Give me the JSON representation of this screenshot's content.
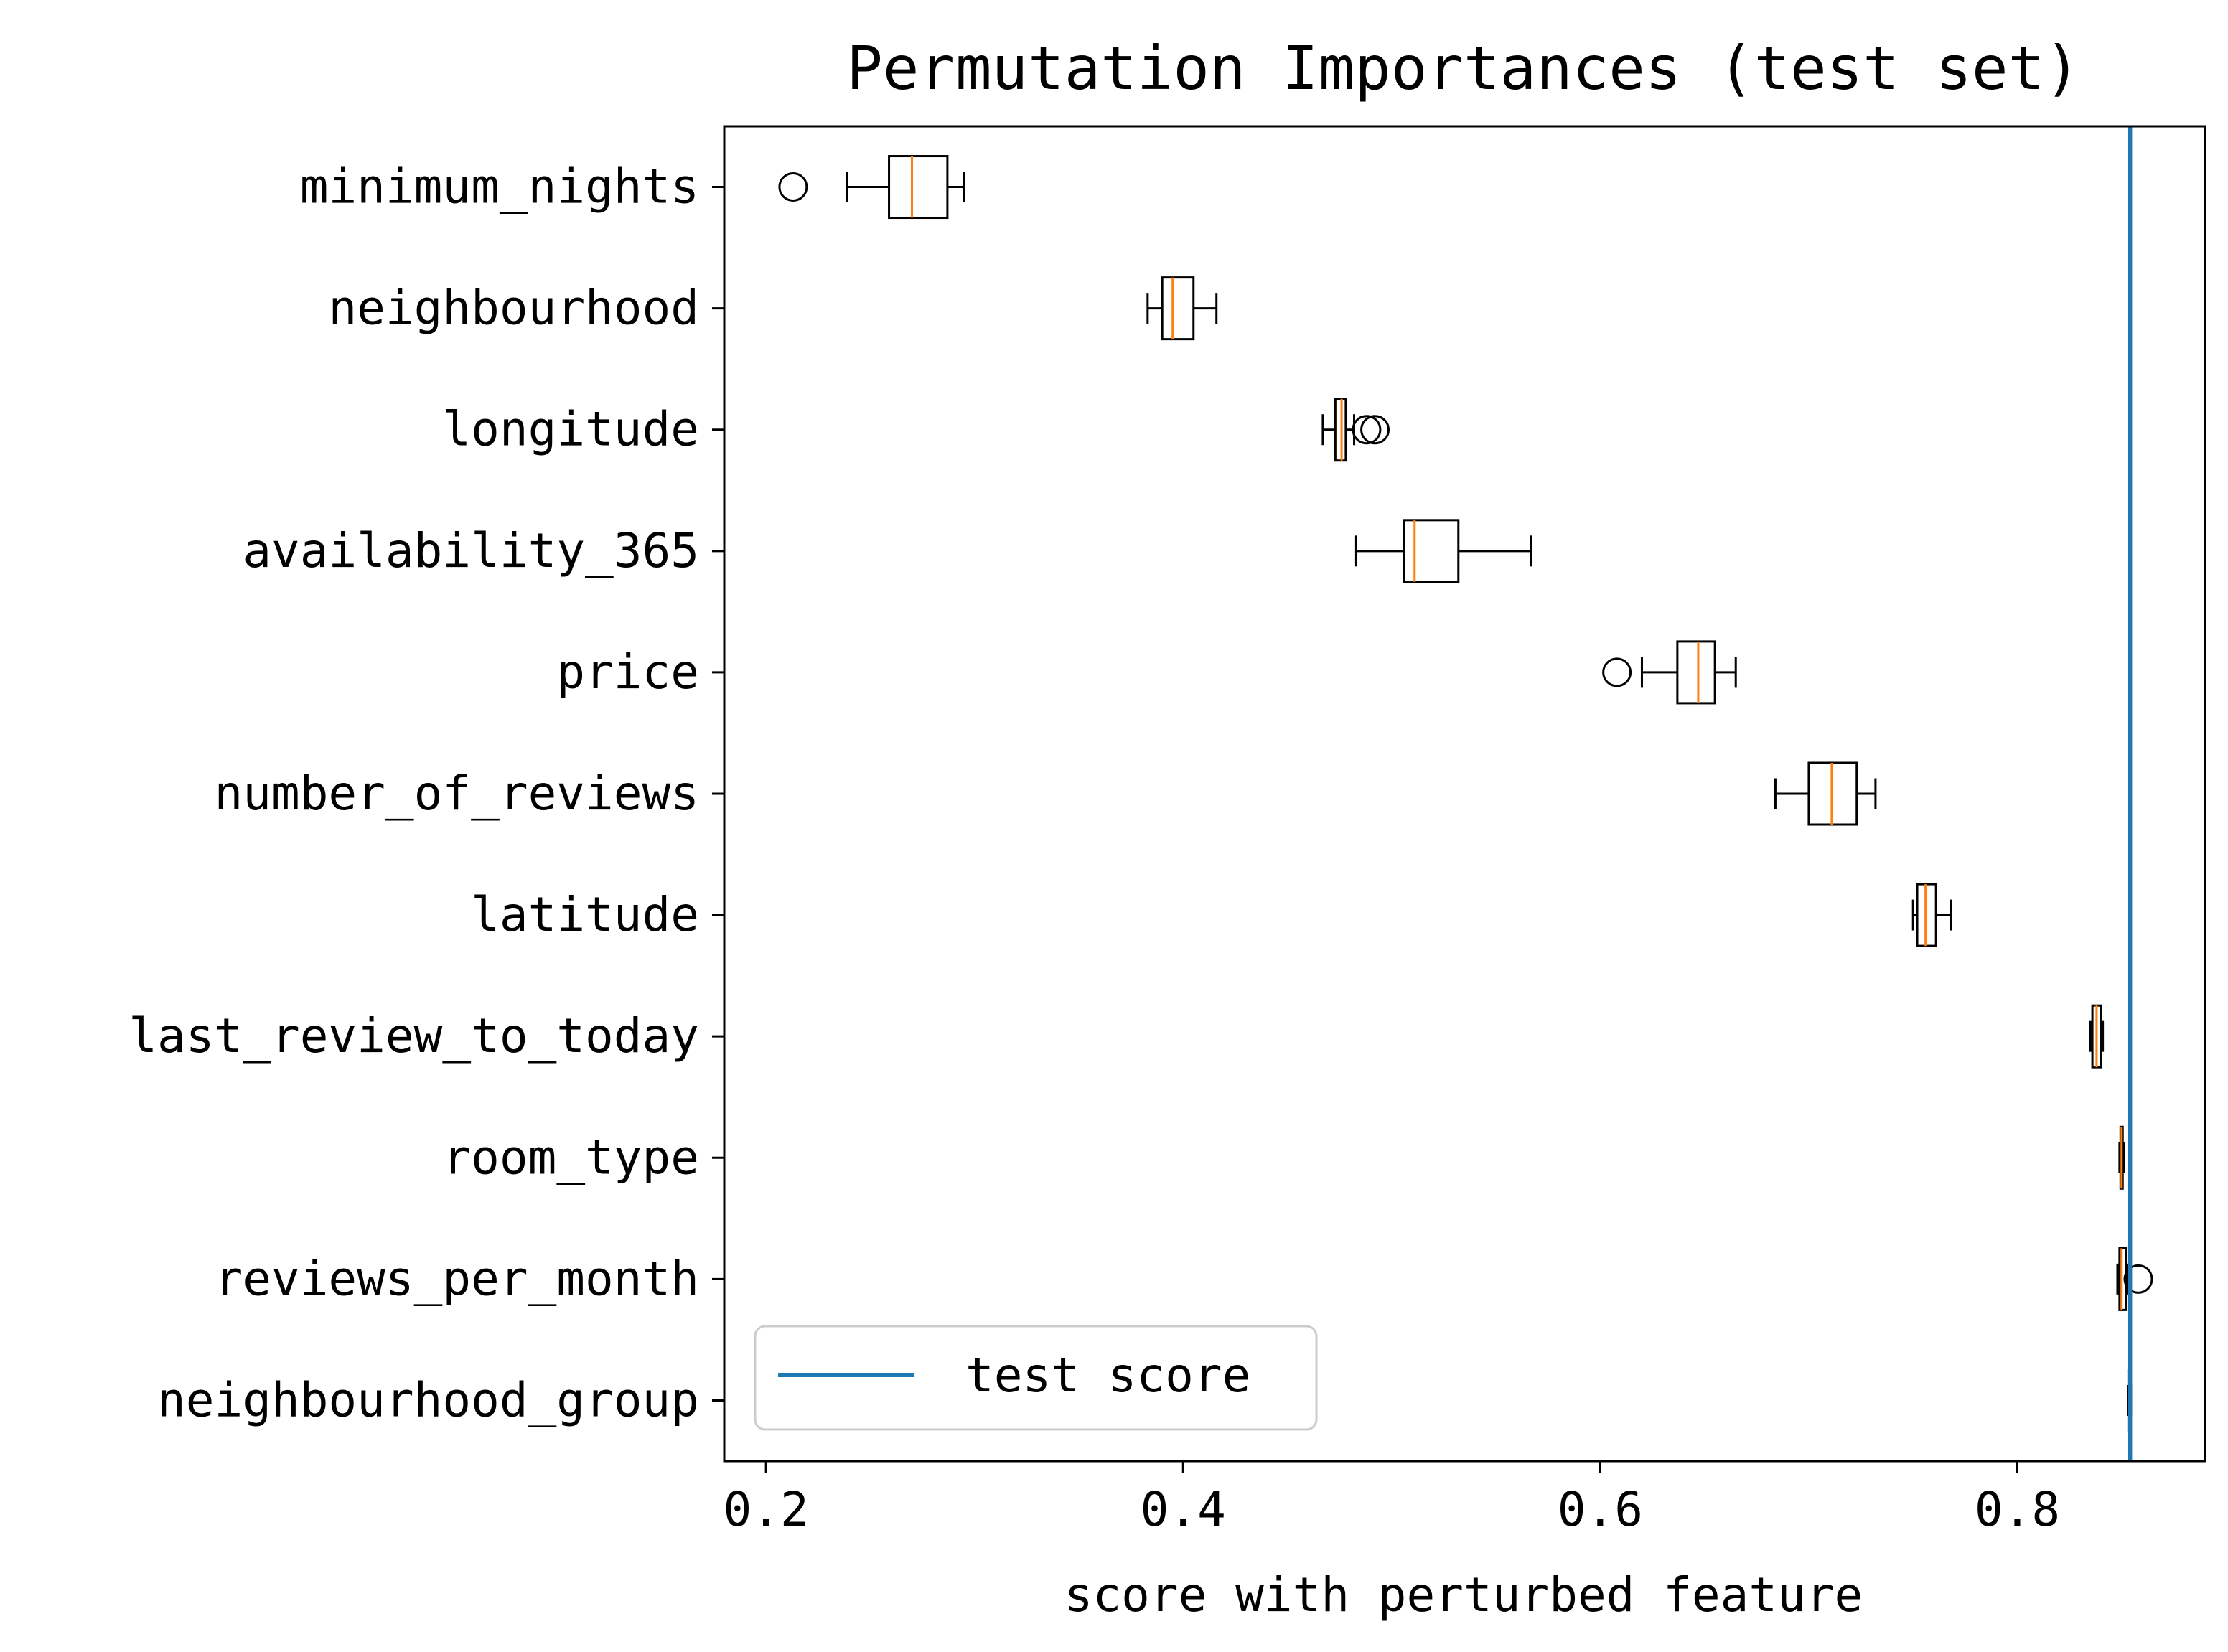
{
  "chart_data": {
    "type": "boxplot",
    "orientation": "horizontal",
    "title": "Permutation Importances (test set)",
    "xlabel": "score with perturbed feature",
    "ylabel": "",
    "xlim": [
      0.18,
      0.89
    ],
    "xticks": [
      0.2,
      0.4,
      0.6,
      0.8
    ],
    "xtick_labels": [
      "0.2",
      "0.4",
      "0.6",
      "0.8"
    ],
    "grid": false,
    "colors": {
      "box": "#000000",
      "median": "#ff7f0e",
      "test_score": "#1f77b4"
    },
    "test_score": {
      "label": "test score",
      "value": 0.854
    },
    "legend": {
      "position": "lower-left",
      "entries": [
        "test score"
      ]
    },
    "features": [
      {
        "name": "minimum_nights",
        "whisker_low": 0.239,
        "q1": 0.259,
        "median": 0.27,
        "q3": 0.287,
        "whisker_high": 0.295,
        "outliers": [
          0.213
        ]
      },
      {
        "name": "neighbourhood",
        "whisker_low": 0.383,
        "q1": 0.39,
        "median": 0.395,
        "q3": 0.405,
        "whisker_high": 0.416,
        "outliers": []
      },
      {
        "name": "longitude",
        "whisker_low": 0.467,
        "q1": 0.473,
        "median": 0.476,
        "q3": 0.478,
        "whisker_high": 0.482,
        "outliers": [
          0.488,
          0.492
        ]
      },
      {
        "name": "availability_365",
        "whisker_low": 0.483,
        "q1": 0.506,
        "median": 0.511,
        "q3": 0.532,
        "whisker_high": 0.567,
        "outliers": []
      },
      {
        "name": "price",
        "whisker_low": 0.62,
        "q1": 0.637,
        "median": 0.647,
        "q3": 0.655,
        "whisker_high": 0.665,
        "outliers": [
          0.608
        ]
      },
      {
        "name": "number_of_reviews",
        "whisker_low": 0.684,
        "q1": 0.7,
        "median": 0.711,
        "q3": 0.723,
        "whisker_high": 0.732,
        "outliers": []
      },
      {
        "name": "latitude",
        "whisker_low": 0.75,
        "q1": 0.752,
        "median": 0.756,
        "q3": 0.761,
        "whisker_high": 0.768,
        "outliers": []
      },
      {
        "name": "last_review_to_today",
        "whisker_low": 0.835,
        "q1": 0.836,
        "median": 0.838,
        "q3": 0.84,
        "whisker_high": 0.841,
        "outliers": []
      },
      {
        "name": "room_type",
        "whisker_low": 0.849,
        "q1": 0.8495,
        "median": 0.85,
        "q3": 0.8505,
        "whisker_high": 0.851,
        "outliers": []
      },
      {
        "name": "reviews_per_month",
        "whisker_low": 0.848,
        "q1": 0.849,
        "median": 0.85,
        "q3": 0.852,
        "whisker_high": 0.853,
        "outliers": [
          0.858
        ]
      },
      {
        "name": "neighbourhood_group",
        "whisker_low": 0.853,
        "q1": 0.8533,
        "median": 0.8537,
        "q3": 0.8542,
        "whisker_high": 0.8545,
        "outliers": []
      }
    ]
  }
}
